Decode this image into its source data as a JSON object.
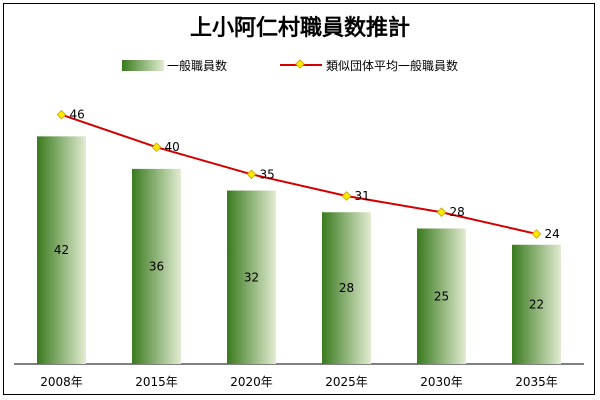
{
  "chart_data": {
    "type": "bar",
    "title": "上小阿仁村職員数推計",
    "categories": [
      "2008年",
      "2015年",
      "2020年",
      "2025年",
      "2030年",
      "2035年"
    ],
    "series": [
      {
        "name": "一般職員数",
        "type": "bar",
        "values": [
          42,
          36,
          32,
          28,
          25,
          22
        ]
      },
      {
        "name": "類似団体平均一般職員数",
        "type": "line",
        "values": [
          46,
          40,
          35,
          31,
          28,
          24
        ]
      }
    ],
    "ylim": [
      0,
      50
    ],
    "grid": false,
    "legend_position": "top",
    "colors": {
      "bar_dark": "#3a7a1e",
      "bar_light": "#e2ecd2",
      "line": "#d40000",
      "marker": "#ffe800",
      "marker_edge": "#c8a400"
    }
  }
}
